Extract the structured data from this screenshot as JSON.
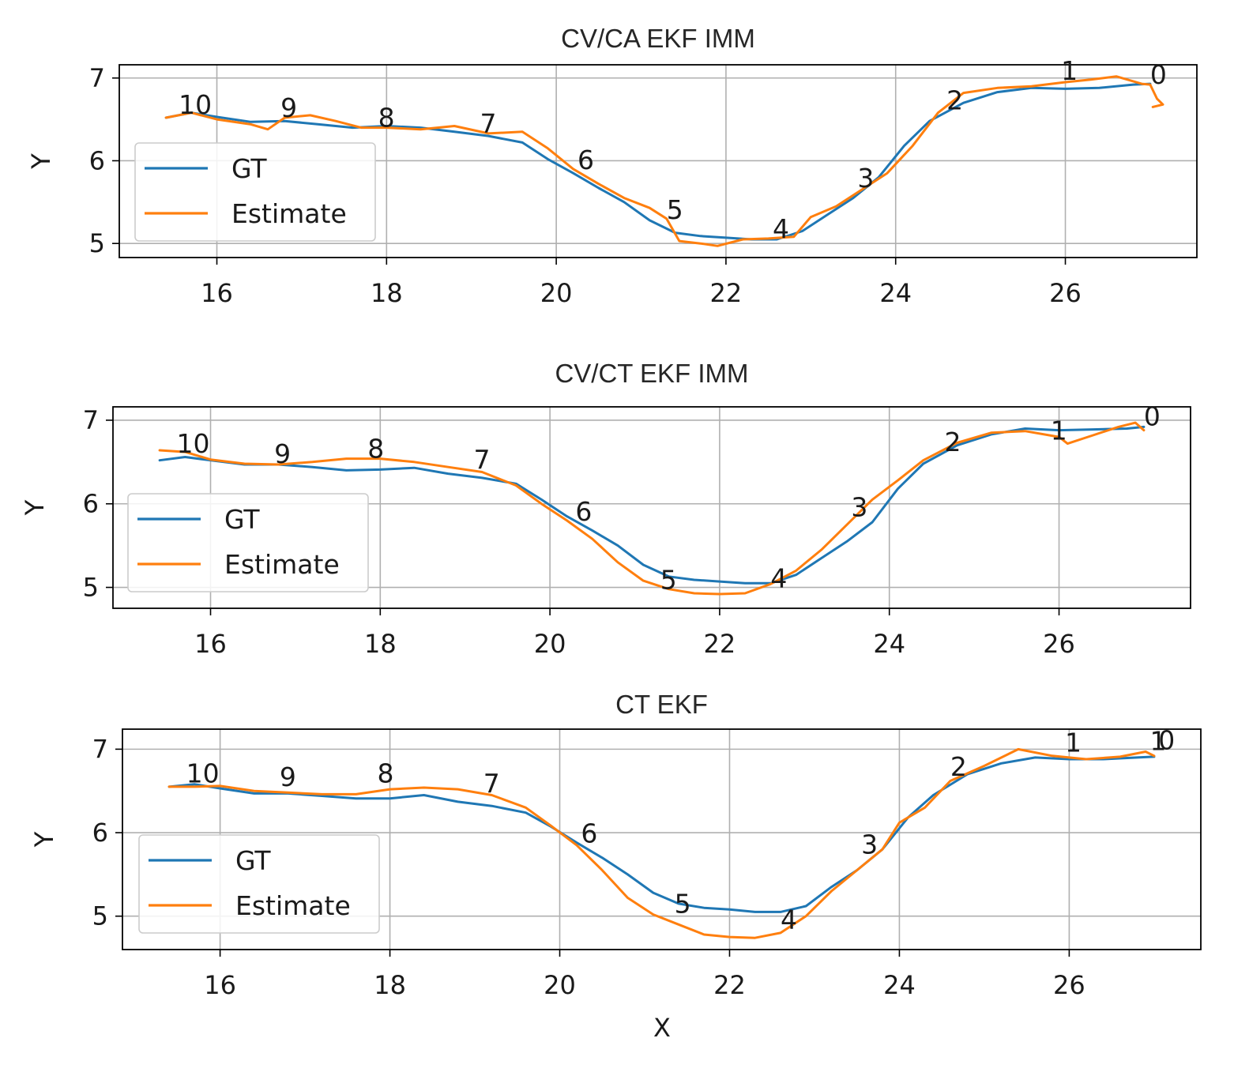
{
  "figure": {
    "xlabel": "X"
  },
  "chart_data": [
    {
      "type": "line",
      "title": "CV/CA EKF IMM",
      "xlabel": "",
      "ylabel": "Y",
      "xlim": [
        14.85,
        27.55
      ],
      "ylim": [
        4.83,
        7.16
      ],
      "xticks": [
        16,
        18,
        20,
        22,
        24,
        26
      ],
      "yticks": [
        5,
        6,
        7
      ],
      "grid": true,
      "legend": "center-left",
      "series": [
        {
          "name": "GT",
          "color": "#1f77b4",
          "x": [
            15.4,
            15.7,
            16.0,
            16.4,
            16.8,
            17.2,
            17.6,
            18.0,
            18.4,
            18.8,
            19.2,
            19.6,
            19.9,
            20.2,
            20.5,
            20.8,
            21.1,
            21.4,
            21.7,
            22.0,
            22.3,
            22.6,
            22.9,
            23.2,
            23.5,
            23.8,
            24.1,
            24.4,
            24.8,
            25.2,
            25.6,
            26.0,
            26.4,
            26.8,
            27.0
          ],
          "y": [
            6.52,
            6.58,
            6.53,
            6.47,
            6.48,
            6.44,
            6.4,
            6.42,
            6.4,
            6.35,
            6.3,
            6.22,
            6.02,
            5.85,
            5.67,
            5.5,
            5.28,
            5.13,
            5.09,
            5.07,
            5.05,
            5.05,
            5.15,
            5.35,
            5.55,
            5.8,
            6.18,
            6.48,
            6.7,
            6.83,
            6.88,
            6.87,
            6.88,
            6.92,
            6.93
          ]
        },
        {
          "name": "Estimate",
          "color": "#ff7f0e",
          "x": [
            15.4,
            15.7,
            16.0,
            16.4,
            16.6,
            16.8,
            17.1,
            17.4,
            17.7,
            18.0,
            18.4,
            18.8,
            19.2,
            19.6,
            19.9,
            20.2,
            20.5,
            20.8,
            21.1,
            21.3,
            21.45,
            21.7,
            21.9,
            22.2,
            22.5,
            22.8,
            23.0,
            23.3,
            23.6,
            23.9,
            24.2,
            24.5,
            24.8,
            25.2,
            25.6,
            26.0,
            26.3,
            26.6,
            26.9,
            27.0,
            27.08,
            27.15,
            27.03
          ],
          "y": [
            6.52,
            6.58,
            6.5,
            6.44,
            6.38,
            6.52,
            6.55,
            6.48,
            6.4,
            6.4,
            6.38,
            6.42,
            6.33,
            6.35,
            6.15,
            5.9,
            5.72,
            5.55,
            5.43,
            5.3,
            5.03,
            5.0,
            4.97,
            5.05,
            5.06,
            5.08,
            5.32,
            5.45,
            5.65,
            5.85,
            6.18,
            6.58,
            6.82,
            6.88,
            6.9,
            6.95,
            6.98,
            7.02,
            6.93,
            6.92,
            6.75,
            6.68,
            6.65
          ]
        }
      ],
      "annotations": [
        {
          "text": "10",
          "x": 15.55,
          "y": 6.57
        },
        {
          "text": "9",
          "x": 16.75,
          "y": 6.53
        },
        {
          "text": "8",
          "x": 17.9,
          "y": 6.41
        },
        {
          "text": "7",
          "x": 19.1,
          "y": 6.34
        },
        {
          "text": "6",
          "x": 20.25,
          "y": 5.9
        },
        {
          "text": "5",
          "x": 21.3,
          "y": 5.3
        },
        {
          "text": "4",
          "x": 22.55,
          "y": 5.07
        },
        {
          "text": "3",
          "x": 23.55,
          "y": 5.68
        },
        {
          "text": "2",
          "x": 24.6,
          "y": 6.62
        },
        {
          "text": "1",
          "x": 25.95,
          "y": 6.98
        },
        {
          "text": "0",
          "x": 27.0,
          "y": 6.93
        }
      ]
    },
    {
      "type": "line",
      "title": "CV/CT EKF IMM",
      "xlabel": "",
      "ylabel": "Y",
      "xlim": [
        14.85,
        27.55
      ],
      "ylim": [
        4.75,
        7.16
      ],
      "xticks": [
        16,
        18,
        20,
        22,
        24,
        26
      ],
      "yticks": [
        5,
        6,
        7
      ],
      "grid": true,
      "legend": "center-left",
      "series": [
        {
          "name": "GT",
          "color": "#1f77b4",
          "x": [
            15.4,
            15.7,
            16.0,
            16.4,
            16.8,
            17.2,
            17.6,
            18.0,
            18.4,
            18.8,
            19.2,
            19.6,
            19.9,
            20.2,
            20.5,
            20.8,
            21.1,
            21.4,
            21.7,
            22.0,
            22.3,
            22.6,
            22.9,
            23.2,
            23.5,
            23.8,
            24.1,
            24.4,
            24.8,
            25.2,
            25.6,
            26.0,
            26.4,
            26.8,
            27.0
          ],
          "y": [
            6.52,
            6.56,
            6.52,
            6.47,
            6.47,
            6.44,
            6.4,
            6.41,
            6.43,
            6.36,
            6.31,
            6.24,
            6.05,
            5.85,
            5.68,
            5.5,
            5.27,
            5.13,
            5.09,
            5.07,
            5.05,
            5.05,
            5.15,
            5.35,
            5.55,
            5.78,
            6.18,
            6.48,
            6.7,
            6.83,
            6.9,
            6.88,
            6.89,
            6.9,
            6.92
          ]
        },
        {
          "name": "Estimate",
          "color": "#ff7f0e",
          "x": [
            15.4,
            15.7,
            16.0,
            16.4,
            16.8,
            17.2,
            17.6,
            18.0,
            18.4,
            18.8,
            19.2,
            19.6,
            19.9,
            20.2,
            20.5,
            20.8,
            21.1,
            21.4,
            21.7,
            22.0,
            22.3,
            22.6,
            22.9,
            23.2,
            23.5,
            23.8,
            24.1,
            24.4,
            24.8,
            25.2,
            25.6,
            26.0,
            26.1,
            26.4,
            26.7,
            26.9,
            27.0
          ],
          "y": [
            6.64,
            6.62,
            6.53,
            6.48,
            6.47,
            6.5,
            6.54,
            6.54,
            6.5,
            6.44,
            6.38,
            6.22,
            6.0,
            5.8,
            5.58,
            5.3,
            5.08,
            4.98,
            4.93,
            4.92,
            4.93,
            5.04,
            5.2,
            5.45,
            5.75,
            6.05,
            6.28,
            6.52,
            6.73,
            6.85,
            6.87,
            6.8,
            6.72,
            6.82,
            6.92,
            6.97,
            6.88
          ]
        }
      ],
      "annotations": [
        {
          "text": "10",
          "x": 15.6,
          "y": 6.61
        },
        {
          "text": "9",
          "x": 16.75,
          "y": 6.49
        },
        {
          "text": "8",
          "x": 17.85,
          "y": 6.55
        },
        {
          "text": "7",
          "x": 19.1,
          "y": 6.42
        },
        {
          "text": "6",
          "x": 20.3,
          "y": 5.8
        },
        {
          "text": "5",
          "x": 21.3,
          "y": 4.98
        },
        {
          "text": "4",
          "x": 22.6,
          "y": 5.0
        },
        {
          "text": "3",
          "x": 23.55,
          "y": 5.85
        },
        {
          "text": "2",
          "x": 24.65,
          "y": 6.63
        },
        {
          "text": "1",
          "x": 25.9,
          "y": 6.77
        },
        {
          "text": "0",
          "x": 27.0,
          "y": 6.94
        }
      ]
    },
    {
      "type": "line",
      "title": "CT EKF",
      "xlabel": "X",
      "ylabel": "Y",
      "xlim": [
        14.85,
        27.55
      ],
      "ylim": [
        4.6,
        7.24
      ],
      "xticks": [
        16,
        18,
        20,
        22,
        24,
        26
      ],
      "yticks": [
        5,
        6,
        7
      ],
      "grid": true,
      "legend": "lower-left",
      "series": [
        {
          "name": "GT",
          "color": "#1f77b4",
          "x": [
            15.4,
            15.7,
            16.0,
            16.4,
            16.8,
            17.2,
            17.6,
            18.0,
            18.4,
            18.8,
            19.2,
            19.6,
            19.9,
            20.2,
            20.5,
            20.8,
            21.1,
            21.4,
            21.7,
            22.0,
            22.3,
            22.6,
            22.9,
            23.2,
            23.5,
            23.8,
            24.1,
            24.4,
            24.8,
            25.2,
            25.6,
            26.0,
            26.4,
            26.8,
            27.0
          ],
          "y": [
            6.55,
            6.58,
            6.53,
            6.47,
            6.47,
            6.44,
            6.41,
            6.41,
            6.45,
            6.37,
            6.32,
            6.24,
            6.07,
            5.88,
            5.7,
            5.5,
            5.28,
            5.15,
            5.1,
            5.08,
            5.05,
            5.05,
            5.12,
            5.35,
            5.55,
            5.8,
            6.18,
            6.45,
            6.7,
            6.83,
            6.9,
            6.88,
            6.88,
            6.9,
            6.91
          ]
        },
        {
          "name": "Estimate",
          "color": "#ff7f0e",
          "x": [
            15.4,
            15.7,
            16.0,
            16.4,
            16.8,
            17.2,
            17.6,
            18.0,
            18.4,
            18.8,
            19.2,
            19.6,
            19.9,
            20.2,
            20.5,
            20.8,
            21.1,
            21.4,
            21.7,
            22.0,
            22.3,
            22.6,
            22.9,
            23.2,
            23.5,
            23.8,
            24.0,
            24.3,
            24.6,
            25.0,
            25.4,
            25.8,
            26.2,
            26.6,
            26.9,
            27.0
          ],
          "y": [
            6.55,
            6.55,
            6.56,
            6.5,
            6.48,
            6.46,
            6.46,
            6.52,
            6.54,
            6.52,
            6.45,
            6.3,
            6.08,
            5.85,
            5.55,
            5.22,
            5.02,
            4.9,
            4.78,
            4.75,
            4.74,
            4.8,
            5.0,
            5.3,
            5.55,
            5.8,
            6.12,
            6.3,
            6.62,
            6.8,
            7.0,
            6.92,
            6.88,
            6.91,
            6.97,
            6.92
          ]
        }
      ],
      "annotations": [
        {
          "text": "10",
          "x": 15.6,
          "y": 6.6
        },
        {
          "text": "9",
          "x": 16.7,
          "y": 6.56
        },
        {
          "text": "8",
          "x": 17.85,
          "y": 6.6
        },
        {
          "text": "7",
          "x": 19.1,
          "y": 6.48
        },
        {
          "text": "6",
          "x": 20.25,
          "y": 5.88
        },
        {
          "text": "5",
          "x": 21.35,
          "y": 5.04
        },
        {
          "text": "4",
          "x": 22.6,
          "y": 4.85
        },
        {
          "text": "3",
          "x": 23.55,
          "y": 5.75
        },
        {
          "text": "2",
          "x": 24.6,
          "y": 6.68
        },
        {
          "text": "1",
          "x": 25.95,
          "y": 6.97
        },
        {
          "text": "0",
          "x": 27.05,
          "y": 7.0
        },
        {
          "text": "1",
          "x": 26.95,
          "y": 6.99
        }
      ]
    }
  ]
}
